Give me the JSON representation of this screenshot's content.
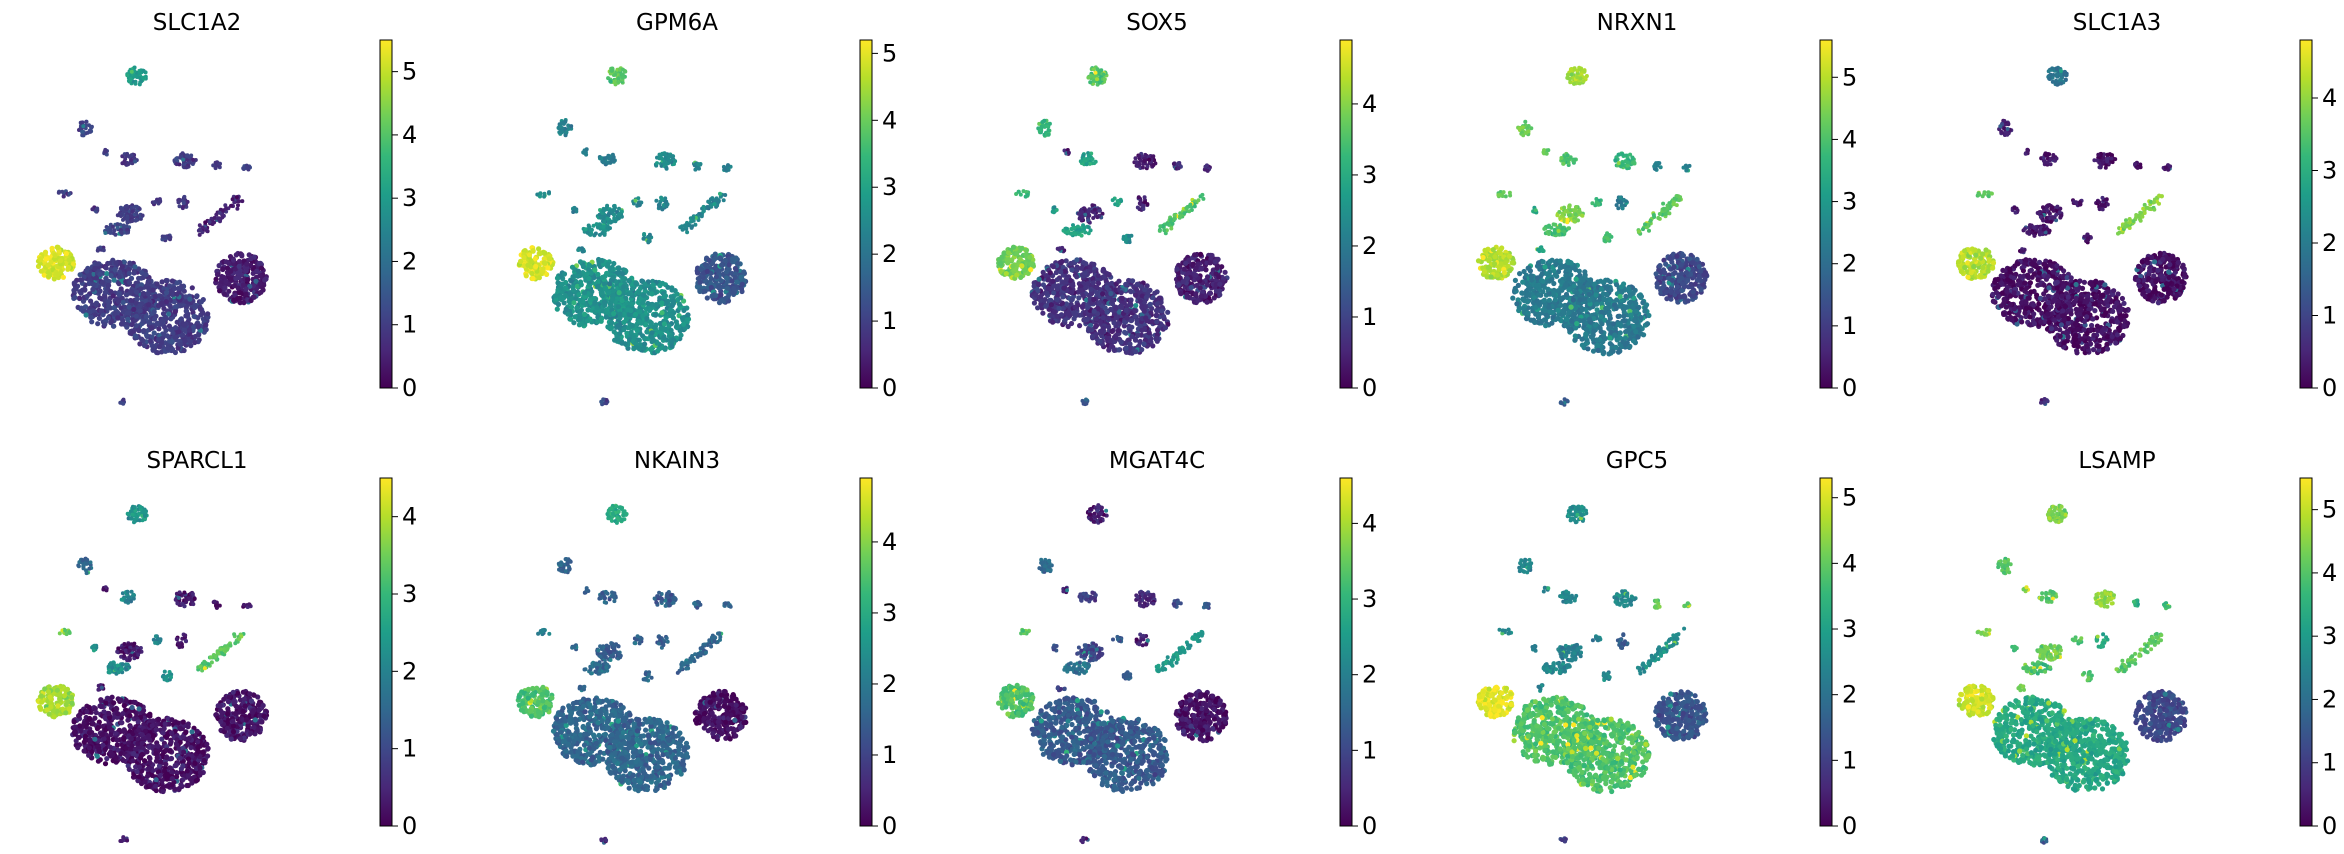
{
  "figure": {
    "colormap": "viridis",
    "colormap_stops": [
      "#440154",
      "#482878",
      "#3e4989",
      "#31688e",
      "#26828e",
      "#1f9e89",
      "#35b779",
      "#6ece58",
      "#b5de2b",
      "#fde725"
    ],
    "background": "#ffffff"
  },
  "chart_data": [
    {
      "type": "scatter",
      "title": "SLC1A2",
      "colorbar": {
        "ticks": [
          0,
          1,
          2,
          3,
          4,
          5
        ],
        "range": [
          0,
          5.5
        ]
      },
      "cluster_levels": {
        "A": 3.0,
        "B": 1.1,
        "C": 5.2,
        "D": 1.0,
        "E": 0.4,
        "F": 1.2,
        "G": 0.9,
        "H": 0.9,
        "I": 1.0,
        "J": 1.2,
        "K": 0.5,
        "L": 0.9,
        "M": 1.0,
        "N": 0.9,
        "O": 0.8,
        "P": 1.0,
        "Q": 1.0,
        "R": 0.8,
        "S": 1.0,
        "T": 1.0
      }
    },
    {
      "type": "scatter",
      "title": "GPM6A",
      "colorbar": {
        "ticks": [
          0,
          1,
          2,
          3,
          4,
          5
        ],
        "range": [
          0,
          5.2
        ]
      },
      "cluster_levels": {
        "A": 3.8,
        "B": 1.2,
        "C": 4.9,
        "D": 2.6,
        "E": 1.4,
        "F": 2.3,
        "G": 2.5,
        "H": 2.2,
        "I": 2.5,
        "J": 2.6,
        "K": 2.4,
        "L": 2.4,
        "M": 2.4,
        "N": 2.3,
        "O": 2.4,
        "P": 2.5,
        "Q": 2.4,
        "R": 2.3,
        "S": 2.5,
        "T": 2.4
      }
    },
    {
      "type": "scatter",
      "title": "SOX5",
      "colorbar": {
        "ticks": [
          0,
          1,
          2,
          3,
          4
        ],
        "range": [
          0,
          4.9
        ]
      },
      "cluster_levels": {
        "A": 3.6,
        "B": 1.4,
        "C": 3.8,
        "D": 0.7,
        "E": 0.4,
        "F": 3.2,
        "G": 0.3,
        "H": 2.8,
        "I": 0.5,
        "J": 2.8,
        "K": 3.5,
        "L": 0.5,
        "M": 0.5,
        "N": 0.4,
        "O": 2.8,
        "P": 2.6,
        "Q": 0.5,
        "R": 2.6,
        "S": 3.4,
        "T": 0.4
      }
    },
    {
      "type": "scatter",
      "title": "NRXN1",
      "colorbar": {
        "ticks": [
          0,
          1,
          2,
          3,
          4,
          5
        ],
        "range": [
          0,
          5.6
        ]
      },
      "cluster_levels": {
        "A": 4.8,
        "B": 1.5,
        "C": 4.9,
        "D": 2.3,
        "E": 1.2,
        "F": 4.3,
        "G": 3.7,
        "H": 3.9,
        "I": 4.5,
        "J": 3.9,
        "K": 4.2,
        "L": 2.4,
        "M": 2.4,
        "N": 2.3,
        "O": 3.8,
        "P": 4.0,
        "Q": 3.2,
        "R": 3.5,
        "S": 4.2,
        "T": 4.3
      }
    },
    {
      "type": "scatter",
      "title": "SLC1A3",
      "colorbar": {
        "ticks": [
          0,
          1,
          2,
          3,
          4
        ],
        "range": [
          0,
          4.8
        ]
      },
      "cluster_levels": {
        "A": 1.8,
        "B": 0.5,
        "C": 4.3,
        "D": 0.2,
        "E": 0.2,
        "F": 0.3,
        "G": 0.2,
        "H": 0.3,
        "I": 0.3,
        "J": 0.3,
        "K": 3.9,
        "L": 0.2,
        "M": 0.3,
        "N": 0.2,
        "O": 0.3,
        "P": 0.3,
        "Q": 0.2,
        "R": 0.3,
        "S": 3.5,
        "T": 0.3
      }
    },
    {
      "type": "scatter",
      "title": "SPARCL1",
      "colorbar": {
        "ticks": [
          0,
          1,
          2,
          3,
          4
        ],
        "range": [
          0,
          4.5
        ]
      },
      "cluster_levels": {
        "A": 2.3,
        "B": 0.4,
        "C": 3.9,
        "D": 0.2,
        "E": 0.2,
        "F": 1.5,
        "G": 0.3,
        "H": 2.0,
        "I": 0.3,
        "J": 2.2,
        "K": 3.3,
        "L": 0.2,
        "M": 0.3,
        "N": 0.2,
        "O": 2.0,
        "P": 2.2,
        "Q": 0.2,
        "R": 2.2,
        "S": 3.5,
        "T": 0.3
      }
    },
    {
      "type": "scatter",
      "title": "NKAIN3",
      "colorbar": {
        "ticks": [
          0,
          1,
          2,
          3,
          4
        ],
        "range": [
          0,
          4.9
        ]
      },
      "cluster_levels": {
        "A": 3.0,
        "B": 0.5,
        "C": 3.5,
        "D": 1.6,
        "E": 0.2,
        "F": 1.5,
        "G": 1.4,
        "H": 1.6,
        "I": 1.4,
        "J": 1.7,
        "K": 1.6,
        "L": 1.6,
        "M": 1.6,
        "N": 1.5,
        "O": 1.5,
        "P": 1.6,
        "Q": 1.5,
        "R": 1.5,
        "S": 2.2,
        "T": 1.5
      }
    },
    {
      "type": "scatter",
      "title": "MGAT4C",
      "colorbar": {
        "ticks": [
          0,
          1,
          2,
          3,
          4
        ],
        "range": [
          0,
          4.6
        ]
      },
      "cluster_levels": {
        "A": 0.3,
        "B": 0.5,
        "C": 3.3,
        "D": 1.3,
        "E": 0.2,
        "F": 1.5,
        "G": 0.5,
        "H": 0.8,
        "I": 1.0,
        "J": 1.8,
        "K": 2.5,
        "L": 1.1,
        "M": 1.3,
        "N": 0.4,
        "O": 1.2,
        "P": 1.3,
        "Q": 0.8,
        "R": 1.2,
        "S": 3.5,
        "T": 0.4
      }
    },
    {
      "type": "scatter",
      "title": "GPC5",
      "colorbar": {
        "ticks": [
          0,
          1,
          2,
          3,
          4,
          5
        ],
        "range": [
          0,
          5.3
        ]
      },
      "cluster_levels": {
        "A": 2.6,
        "B": 1.0,
        "C": 5.1,
        "D": 3.8,
        "E": 1.4,
        "F": 2.4,
        "G": 2.5,
        "H": 2.4,
        "I": 2.3,
        "J": 2.4,
        "K": 2.5,
        "L": 4.0,
        "M": 3.9,
        "N": 1.5,
        "O": 2.3,
        "P": 2.5,
        "Q": 2.4,
        "R": 2.2,
        "S": 2.4,
        "T": 2.3
      }
    },
    {
      "type": "scatter",
      "title": "LSAMP",
      "colorbar": {
        "ticks": [
          0,
          1,
          2,
          3,
          4,
          5
        ],
        "range": [
          0,
          5.5
        ]
      },
      "cluster_levels": {
        "A": 4.4,
        "B": 1.4,
        "C": 5.1,
        "D": 3.3,
        "E": 1.2,
        "F": 4.0,
        "G": 4.6,
        "H": 4.0,
        "I": 4.3,
        "J": 3.9,
        "K": 4.1,
        "L": 3.5,
        "M": 3.7,
        "N": 3.3,
        "O": 3.9,
        "P": 4.0,
        "Q": 4.2,
        "R": 3.8,
        "S": 4.4,
        "T": 4.3
      }
    }
  ]
}
